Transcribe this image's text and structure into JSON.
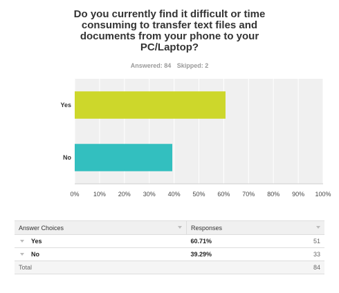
{
  "question": "Do you currently find it difficult or time consuming to transfer text files and documents from your phone to your PC/Laptop?",
  "meta": {
    "answered": "Answered: 84",
    "skipped": "Skipped: 2"
  },
  "chart_data": {
    "type": "bar",
    "orientation": "horizontal",
    "categories": [
      "Yes",
      "No"
    ],
    "values": [
      60.71,
      39.29
    ],
    "colors": [
      "#cdd72b",
      "#33bfbf"
    ],
    "xlim": [
      0,
      100
    ],
    "xticks": [
      "0%",
      "10%",
      "20%",
      "30%",
      "40%",
      "50%",
      "60%",
      "70%",
      "80%",
      "90%",
      "100%"
    ],
    "grid": true,
    "background": "#f0f0f0"
  },
  "table": {
    "headers": [
      "Answer Choices",
      "Responses"
    ],
    "rows": [
      {
        "choice": "Yes",
        "percent": "60.71%",
        "count": "51"
      },
      {
        "choice": "No",
        "percent": "39.29%",
        "count": "33"
      }
    ],
    "total_label": "Total",
    "total_count": "84"
  }
}
